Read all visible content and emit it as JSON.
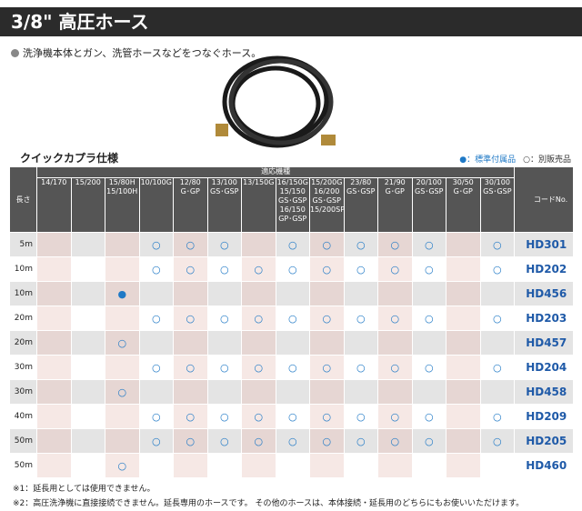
{
  "header": {
    "title": "3/8\" 高圧ホース"
  },
  "description": "洗浄機本体とガン、洗管ホースなどをつなぐホース。",
  "section_title": "クイックカプラ仕様",
  "legend": {
    "standard": "●：標準付属品",
    "optional": "○：別販売品"
  },
  "table": {
    "length_header": "長さ",
    "group_header": "適応機種",
    "code_header": "コードNo.",
    "models": [
      [
        "14/170"
      ],
      [
        "15/200"
      ],
      [
        "15/80H",
        "15/100H"
      ],
      [
        "10/100G"
      ],
      [
        "12/80",
        "G･GP"
      ],
      [
        "13/100",
        "GS･GSP"
      ],
      [
        "13/150G"
      ],
      [
        "16/150G",
        "15/150",
        "GS･GSP",
        "16/150",
        "GP･GSP"
      ],
      [
        "15/200G",
        "16/200",
        "GS･GSP",
        "15/200SP"
      ],
      [
        "23/80",
        "GS･GSP"
      ],
      [
        "21/90",
        "G･GP"
      ],
      [
        "20/100",
        "GS･GSP"
      ],
      [
        "30/50",
        "G･GP"
      ],
      [
        "30/100",
        "GS･GSP"
      ]
    ],
    "rows": [
      {
        "length": "5m",
        "marks": [
          "",
          "",
          "",
          "○",
          "○",
          "○",
          "",
          "○",
          "○",
          "○",
          "○",
          "○",
          "",
          "○"
        ],
        "code": "HD301"
      },
      {
        "length": "10m",
        "marks": [
          "",
          "",
          "",
          "○",
          "○",
          "○",
          "○",
          "○",
          "○",
          "○",
          "○",
          "○",
          "",
          "○"
        ],
        "code": "HD202"
      },
      {
        "length": "10m",
        "marks": [
          "",
          "",
          "●",
          "",
          "",
          "",
          "",
          "",
          "",
          "",
          "",
          "",
          "",
          ""
        ],
        "code": "HD456"
      },
      {
        "length": "20m",
        "marks": [
          "",
          "",
          "",
          "○",
          "○",
          "○",
          "○",
          "○",
          "○",
          "○",
          "○",
          "○",
          "",
          "○"
        ],
        "code": "HD203"
      },
      {
        "length": "20m",
        "marks": [
          "",
          "",
          "○",
          "",
          "",
          "",
          "",
          "",
          "",
          "",
          "",
          "",
          "",
          ""
        ],
        "code": "HD457"
      },
      {
        "length": "30m",
        "marks": [
          "",
          "",
          "",
          "○",
          "○",
          "○",
          "○",
          "○",
          "○",
          "○",
          "○",
          "○",
          "",
          "○"
        ],
        "code": "HD204"
      },
      {
        "length": "30m",
        "marks": [
          "",
          "",
          "○",
          "",
          "",
          "",
          "",
          "",
          "",
          "",
          "",
          "",
          "",
          ""
        ],
        "code": "HD458"
      },
      {
        "length": "40m",
        "marks": [
          "",
          "",
          "",
          "○",
          "○",
          "○",
          "○",
          "○",
          "○",
          "○",
          "○",
          "○",
          "",
          "○"
        ],
        "code": "HD209"
      },
      {
        "length": "50m",
        "marks": [
          "",
          "",
          "",
          "○",
          "○",
          "○",
          "○",
          "○",
          "○",
          "○",
          "○",
          "○",
          "",
          "○"
        ],
        "code": "HD205"
      },
      {
        "length": "50m",
        "marks": [
          "",
          "",
          "○",
          "",
          "",
          "",
          "",
          "",
          "",
          "",
          "",
          "",
          "",
          ""
        ],
        "code": "HD460"
      }
    ]
  },
  "footnotes": [
    "※1：延長用としては使用できません。",
    "※2：高圧洗浄機に直接接続できません。延長専用のホースです。 その他のホースは、本体接続・延長用のどちらにもお使いいただけます。"
  ]
}
